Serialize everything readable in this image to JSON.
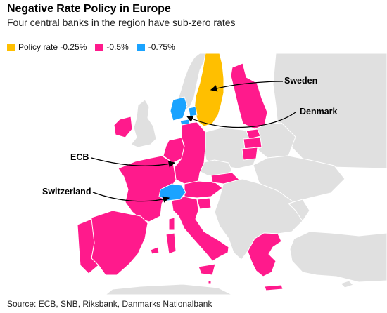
{
  "title": "Negative Rate Policy in Europe",
  "subtitle": "Four central banks in the region have sub-zero rates",
  "legend": [
    {
      "label": "Policy rate -0.25%",
      "color": "#ffbf00"
    },
    {
      "label": "-0.5%",
      "color": "#ff1a8c"
    },
    {
      "label": "-0.75%",
      "color": "#1aa3ff"
    }
  ],
  "colors": {
    "water": "#ffffff",
    "other_land": "#e0e0e0",
    "border": "#ffffff"
  },
  "labels": {
    "sweden": "Sweden",
    "denmark": "Denmark",
    "ecb": "ECB",
    "switzerland": "Switzerland"
  },
  "rates": {
    "sweden": "-0.25%",
    "denmark": "-0.75%",
    "euro_area": "-0.5%",
    "switzerland": "-0.75%"
  },
  "source": "Source: ECB, SNB, Riksbank, Danmarks Nationalbank"
}
